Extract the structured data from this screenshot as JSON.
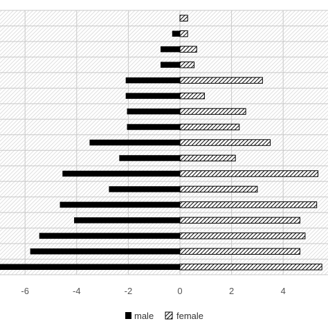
{
  "chart_data": {
    "type": "bar",
    "orientation": "horizontal",
    "grid": true,
    "legend_position": "bottom",
    "xlim": [
      -7,
      5.5
    ],
    "xticks": [
      -6,
      -4,
      -2,
      0,
      2,
      4
    ],
    "xtick_labels": [
      "-6",
      "-4",
      "-2",
      "0",
      "2",
      "4"
    ],
    "series": [
      {
        "name": "male",
        "color": "#000000",
        "pattern": "solid",
        "values": [
          0,
          -0.3,
          -0.75,
          -0.75,
          -2.1,
          -2.1,
          -2.05,
          -2.05,
          -3.5,
          -2.35,
          -4.55,
          -2.75,
          -4.65,
          -4.1,
          -5.45,
          -5.8,
          -7.0
        ]
      },
      {
        "name": "female",
        "color": "#000000",
        "pattern": "diagonal-hatch",
        "values": [
          0.3,
          0.3,
          0.65,
          0.55,
          3.2,
          0.95,
          2.55,
          2.3,
          3.5,
          2.15,
          5.35,
          3.0,
          5.3,
          4.65,
          4.85,
          4.65,
          5.5
        ]
      }
    ]
  }
}
